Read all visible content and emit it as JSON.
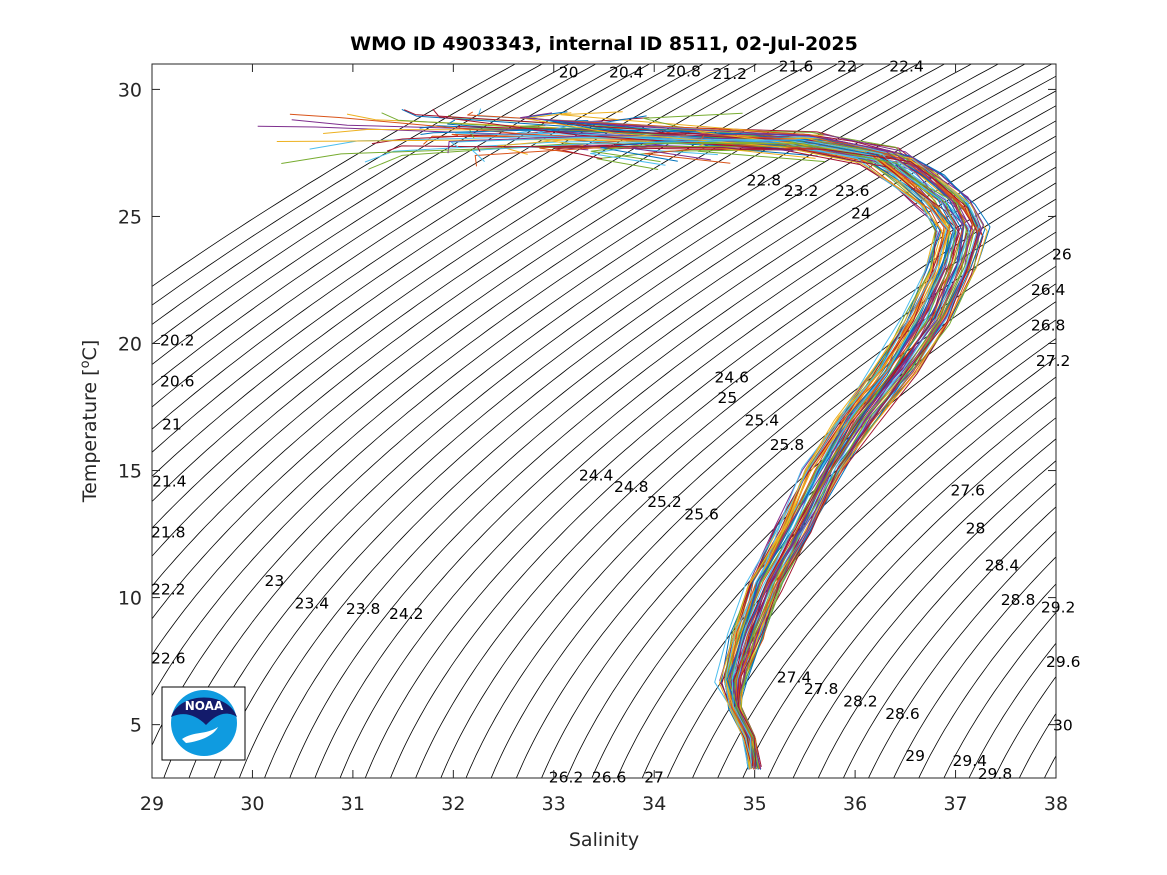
{
  "chart_data": {
    "type": "line",
    "title": "WMO ID 4903343, internal ID 8511, 02-Jul-2025",
    "xlabel": "Salinity",
    "ylabel": "Temperature [",
    "ylabel_sup": "o",
    "ylabel_end": "C]",
    "xlim": [
      29,
      38
    ],
    "ylim": [
      2.9,
      31.0
    ],
    "x_ticks": [
      29,
      30,
      31,
      32,
      33,
      34,
      35,
      36,
      37,
      38
    ],
    "y_ticks": [
      5,
      10,
      15,
      20,
      25,
      30
    ],
    "grid": false,
    "logo": "NOAA",
    "density_contours": {
      "levels_start": 19.6,
      "levels_step": 0.2,
      "levels_end": 30.4,
      "color": "#000000",
      "labels": [
        {
          "text": "20",
          "s": 33.05,
          "t": 30.7
        },
        {
          "text": "20.4",
          "s": 33.55,
          "t": 30.7
        },
        {
          "text": "20.8",
          "s": 34.12,
          "t": 30.75
        },
        {
          "text": "21.2",
          "s": 34.58,
          "t": 30.65
        },
        {
          "text": "21.6",
          "s": 35.24,
          "t": 30.95
        },
        {
          "text": "22",
          "s": 35.82,
          "t": 30.95
        },
        {
          "text": "22.4",
          "s": 36.34,
          "t": 30.95
        },
        {
          "text": "22.8",
          "s": 34.92,
          "t": 26.45
        },
        {
          "text": "23.2",
          "s": 35.29,
          "t": 26.05
        },
        {
          "text": "23.6",
          "s": 35.8,
          "t": 26.05
        },
        {
          "text": "24",
          "s": 35.96,
          "t": 25.15
        },
        {
          "text": "20.2",
          "s": 29.08,
          "t": 20.15
        },
        {
          "text": "20.6",
          "s": 29.08,
          "t": 18.55
        },
        {
          "text": "21",
          "s": 29.1,
          "t": 16.85
        },
        {
          "text": "21.4",
          "s": 29.0,
          "t": 14.6
        },
        {
          "text": "21.8",
          "s": 28.99,
          "t": 12.6
        },
        {
          "text": "22.2",
          "s": 28.99,
          "t": 10.35
        },
        {
          "text": "22.6",
          "s": 28.99,
          "t": 7.65
        },
        {
          "text": "23",
          "s": 30.12,
          "t": 10.7
        },
        {
          "text": "23.4",
          "s": 30.42,
          "t": 9.8
        },
        {
          "text": "23.8",
          "s": 30.93,
          "t": 9.6
        },
        {
          "text": "24.2",
          "s": 31.36,
          "t": 9.4
        },
        {
          "text": "24.4",
          "s": 33.25,
          "t": 14.85
        },
        {
          "text": "24.8",
          "s": 33.6,
          "t": 14.4
        },
        {
          "text": "25.2",
          "s": 33.93,
          "t": 13.8
        },
        {
          "text": "25.6",
          "s": 34.3,
          "t": 13.3
        },
        {
          "text": "24.6",
          "s": 34.6,
          "t": 18.7
        },
        {
          "text": "25",
          "s": 34.63,
          "t": 17.9
        },
        {
          "text": "25.4",
          "s": 34.9,
          "t": 17.0
        },
        {
          "text": "25.8",
          "s": 35.15,
          "t": 16.05
        },
        {
          "text": "26",
          "s": 37.96,
          "t": 23.55
        },
        {
          "text": "26.4",
          "s": 37.75,
          "t": 22.15
        },
        {
          "text": "26.8",
          "s": 37.75,
          "t": 20.75
        },
        {
          "text": "27.2",
          "s": 37.8,
          "t": 19.35
        },
        {
          "text": "27.6",
          "s": 36.95,
          "t": 14.25
        },
        {
          "text": "28",
          "s": 37.1,
          "t": 12.75
        },
        {
          "text": "28.4",
          "s": 37.29,
          "t": 11.3
        },
        {
          "text": "28.8",
          "s": 37.45,
          "t": 9.95
        },
        {
          "text": "29.2",
          "s": 37.85,
          "t": 9.65
        },
        {
          "text": "29.6",
          "s": 37.9,
          "t": 7.5
        },
        {
          "text": "30",
          "s": 37.97,
          "t": 5.0
        },
        {
          "text": "27.4",
          "s": 35.22,
          "t": 6.9
        },
        {
          "text": "27.8",
          "s": 35.49,
          "t": 6.45
        },
        {
          "text": "28.2",
          "s": 35.88,
          "t": 5.95
        },
        {
          "text": "28.6",
          "s": 36.3,
          "t": 5.45
        },
        {
          "text": "29",
          "s": 36.5,
          "t": 3.8
        },
        {
          "text": "29.4",
          "s": 36.97,
          "t": 3.6
        },
        {
          "text": "29.8",
          "s": 37.22,
          "t": 3.1
        },
        {
          "text": "26.2",
          "s": 32.95,
          "t": 2.95
        },
        {
          "text": "26.6",
          "s": 33.38,
          "t": 2.95
        },
        {
          "text": "27",
          "s": 33.9,
          "t": 2.95
        }
      ]
    },
    "profile_series": {
      "count": 70,
      "colors": [
        "#0072BD",
        "#D95319",
        "#EDB120",
        "#7E2F8E",
        "#77AC30",
        "#4DBEEE",
        "#A2142F"
      ],
      "mean_profile": [
        {
          "s": 35.0,
          "t": 3.3
        },
        {
          "s": 34.95,
          "t": 4.5
        },
        {
          "s": 34.8,
          "t": 5.7
        },
        {
          "s": 34.78,
          "t": 6.8
        },
        {
          "s": 34.92,
          "t": 8.5
        },
        {
          "s": 35.1,
          "t": 10.5
        },
        {
          "s": 35.4,
          "t": 12.7
        },
        {
          "s": 35.68,
          "t": 15.0
        },
        {
          "s": 36.0,
          "t": 17.0
        },
        {
          "s": 36.4,
          "t": 19.0
        },
        {
          "s": 36.72,
          "t": 21.0
        },
        {
          "s": 36.95,
          "t": 23.0
        },
        {
          "s": 37.05,
          "t": 24.5
        },
        {
          "s": 36.9,
          "t": 25.5
        },
        {
          "s": 36.6,
          "t": 26.5
        },
        {
          "s": 36.3,
          "t": 27.3
        },
        {
          "s": 35.5,
          "t": 27.9
        },
        {
          "s": 34.0,
          "t": 28.2
        },
        {
          "s": 32.0,
          "t": 28.45
        },
        {
          "s": 30.4,
          "t": 28.6
        }
      ],
      "notes": "Many Argo float profiles overlaid; surface freshwater tails extend from ~29.8 to ~36 PSU near 27-29 C; deep water converges to ~35.0 PSU at ~3.5 C."
    }
  }
}
